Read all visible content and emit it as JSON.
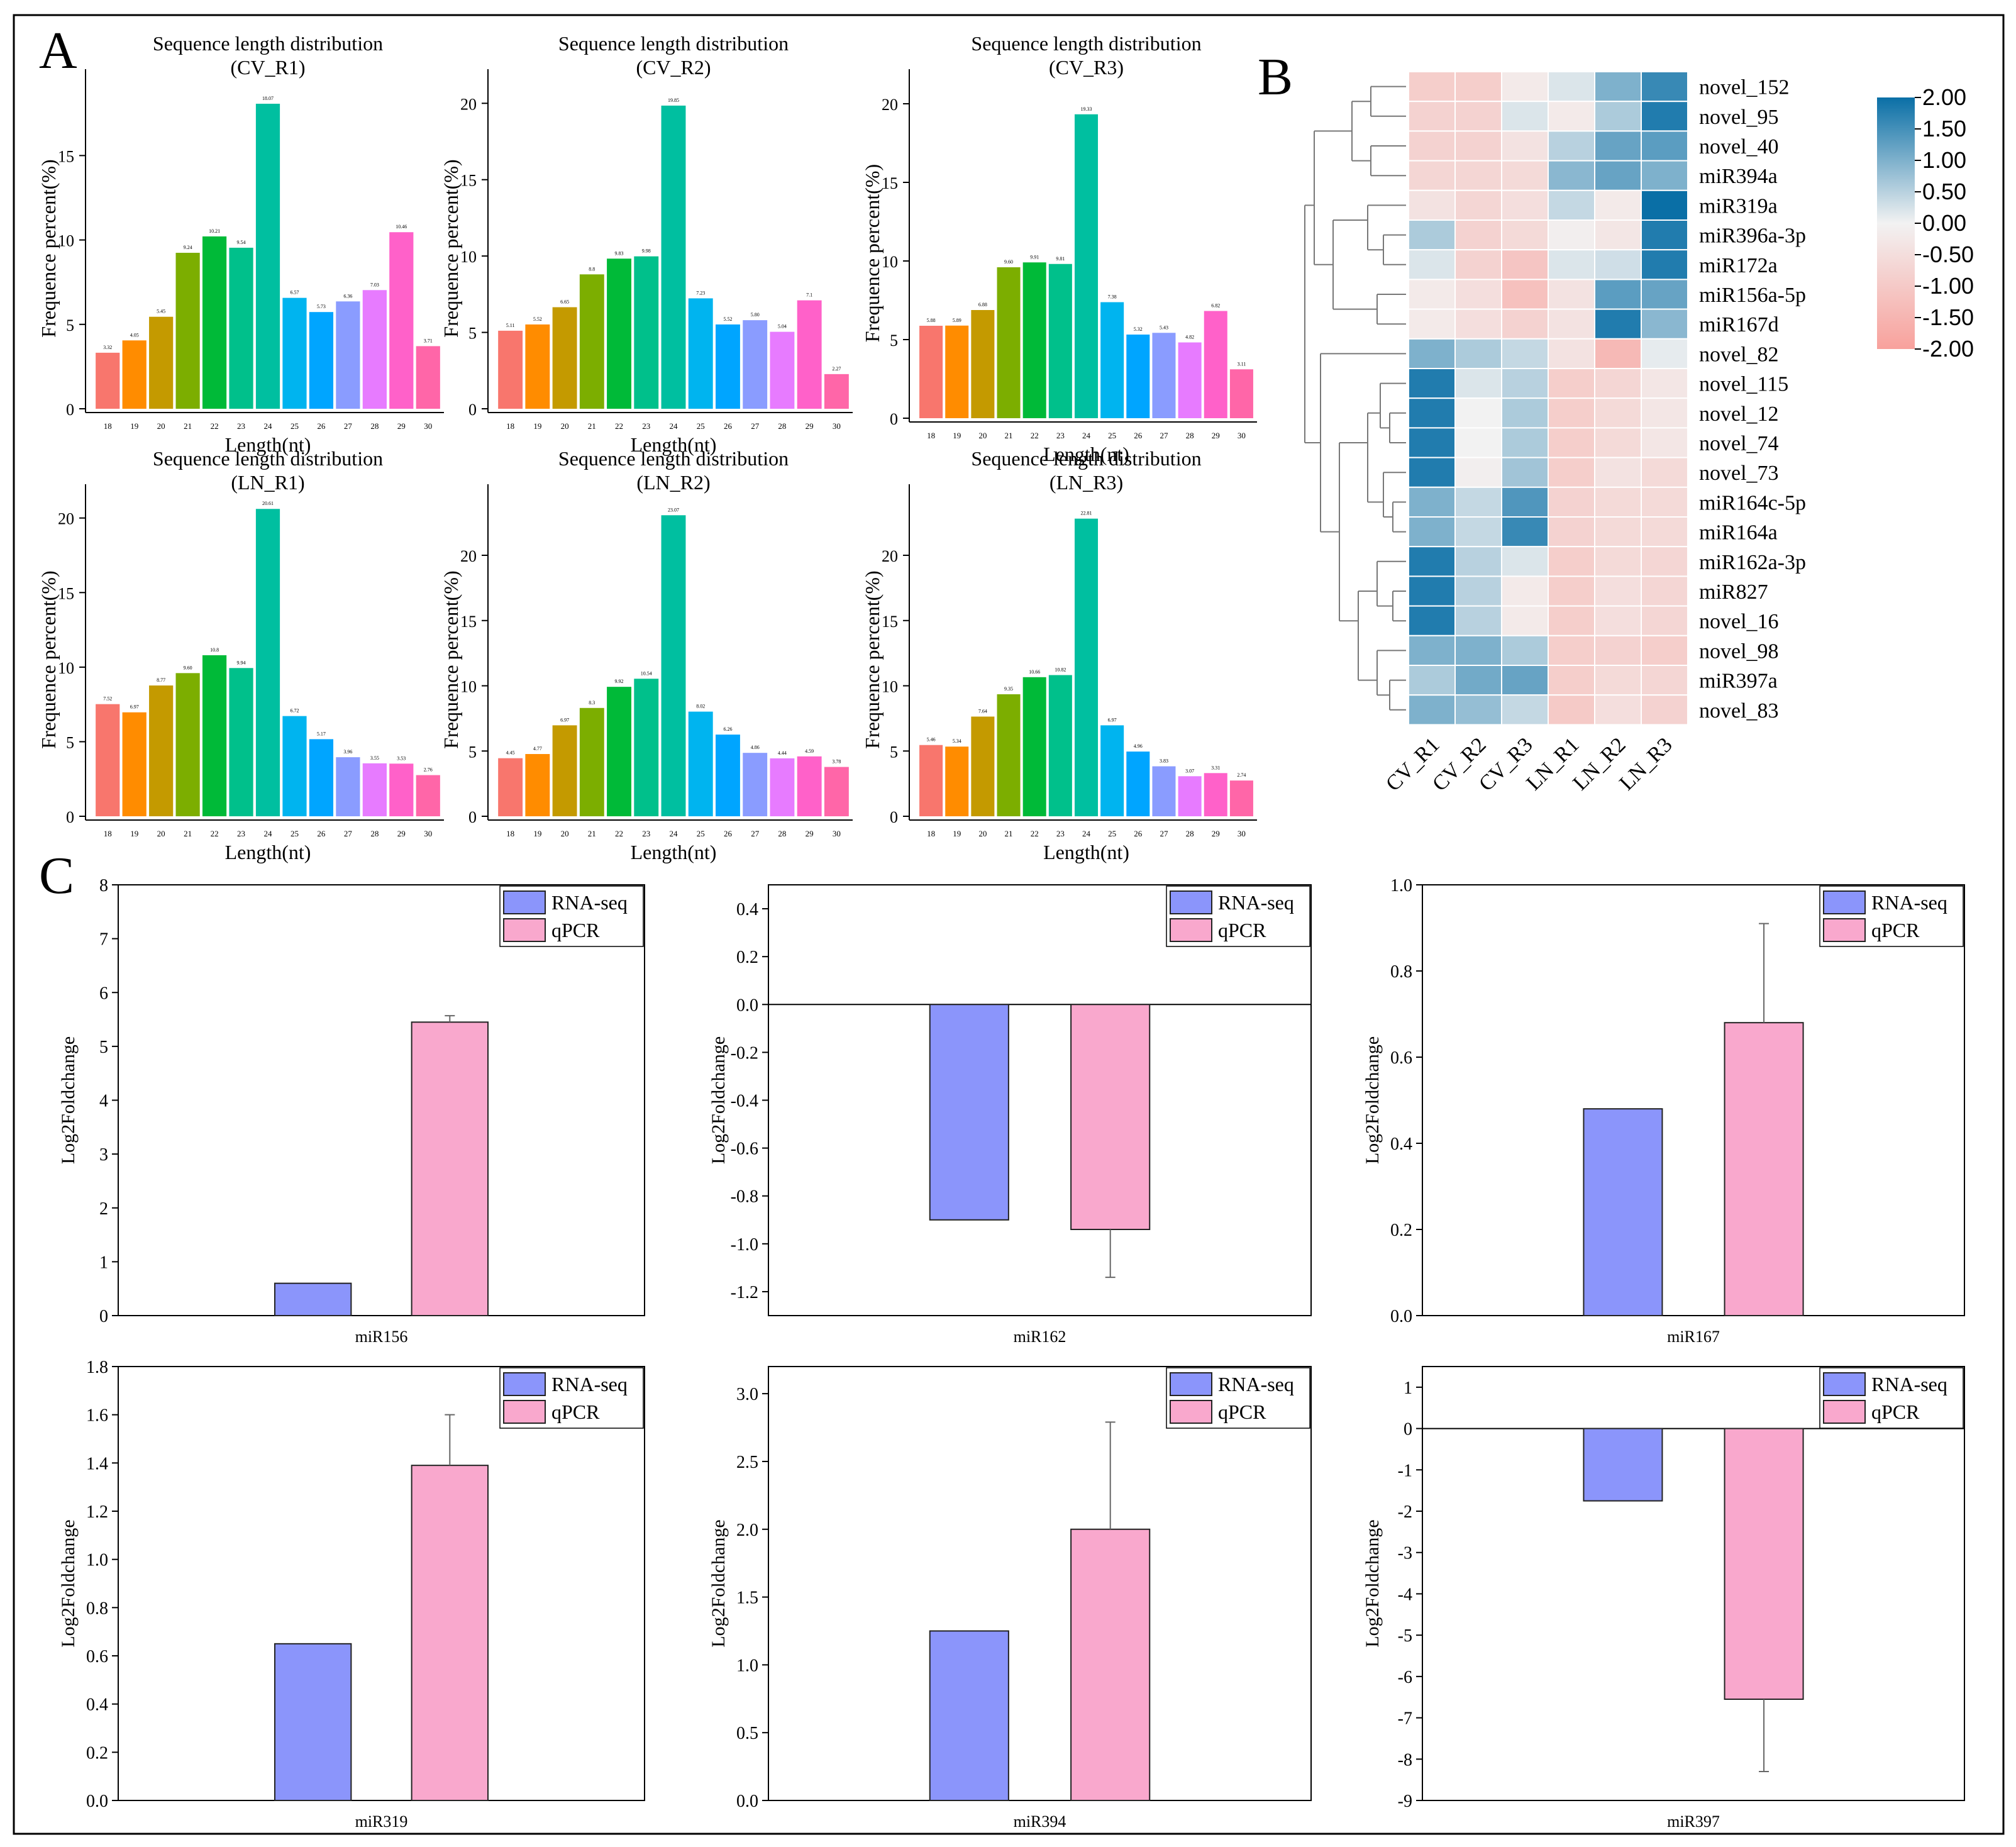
{
  "colors": {
    "bar_palette": [
      "#F8766D",
      "#FF8C00",
      "#C49A00",
      "#7CAE00",
      "#00BA38",
      "#00C08B",
      "#00BFA0",
      "#00B4EF",
      "#00A5FF",
      "#8A9CFF",
      "#E77BFF",
      "#FF61C9",
      "#FF66A8"
    ],
    "rna_seq": "#8B95FB",
    "qpcr": "#F9A8CD",
    "heat_high": "#0A6FA6",
    "heat_mid": "#F2F2F2",
    "heat_low": "#F8A19C"
  },
  "panels": {
    "a": "A",
    "b": "B",
    "c": "C"
  },
  "chart_data": [
    {
      "id": "CV_R1",
      "type": "bar",
      "title": "Sequence length distribution",
      "subtitle": "(CV_R1)",
      "xlabel": "Length(nt)",
      "ylabel": "Frequence percent(%)",
      "categories": [
        "18",
        "19",
        "20",
        "21",
        "22",
        "23",
        "24",
        "25",
        "26",
        "27",
        "28",
        "29",
        "30"
      ],
      "values": [
        3.32,
        4.05,
        5.45,
        9.24,
        10.21,
        9.54,
        18.07,
        6.57,
        5.73,
        6.36,
        7.03,
        10.46,
        3.71
      ],
      "labels": [
        "3.32",
        "4.05",
        "5.45",
        "9.24",
        "10.21",
        "9.54",
        "18.07",
        "6.57",
        "5.73",
        "6.36",
        "7.03",
        "10.46",
        "3.71"
      ],
      "ylim": [
        0,
        19
      ],
      "yticks": [
        0,
        5,
        10,
        15
      ]
    },
    {
      "id": "CV_R2",
      "type": "bar",
      "title": "Sequence length distribution",
      "subtitle": "(CV_R2)",
      "xlabel": "Length(nt)",
      "ylabel": "Frequence percent(%)",
      "categories": [
        "18",
        "19",
        "20",
        "21",
        "22",
        "23",
        "24",
        "25",
        "26",
        "27",
        "28",
        "29",
        "30"
      ],
      "values": [
        5.11,
        5.52,
        6.65,
        8.8,
        9.83,
        9.98,
        19.85,
        7.23,
        5.52,
        5.8,
        5.04,
        7.1,
        2.27
      ],
      "labels": [
        "5.11",
        "5.52",
        "6.65",
        "8.8",
        "9.83",
        "9.98",
        "19.85",
        "7.23",
        "5.52",
        "5.80",
        "5.04",
        "7.1",
        "2.27"
      ],
      "ylim": [
        0,
        21
      ],
      "yticks": [
        0,
        5,
        10,
        15,
        20
      ]
    },
    {
      "id": "CV_R3",
      "type": "bar",
      "title": "Sequence length distribution",
      "subtitle": "(CV_R3)",
      "xlabel": "Length(nt)",
      "ylabel": "Frequence percent(%)",
      "categories": [
        "18",
        "19",
        "20",
        "21",
        "22",
        "23",
        "24",
        "25",
        "26",
        "27",
        "28",
        "29",
        "30"
      ],
      "values": [
        5.88,
        5.89,
        6.88,
        9.6,
        9.91,
        9.81,
        19.33,
        7.38,
        5.32,
        5.43,
        4.82,
        6.82,
        3.11
      ],
      "labels": [
        "5.88",
        "5.89",
        "6.88",
        "9.60",
        "9.91",
        "9.81",
        "19.33",
        "7.38",
        "5.32",
        "5.43",
        "4.82",
        "6.82",
        "3.11"
      ],
      "ylim": [
        0,
        21
      ],
      "yticks": [
        0,
        5,
        10,
        15,
        20
      ]
    },
    {
      "id": "LN_R1",
      "type": "bar",
      "title": "Sequence length distribution",
      "subtitle": "(LN_R1)",
      "xlabel": "Length(nt)",
      "ylabel": "Frequence percent(%)",
      "categories": [
        "18",
        "19",
        "20",
        "21",
        "22",
        "23",
        "24",
        "25",
        "26",
        "27",
        "28",
        "29",
        "30"
      ],
      "values": [
        7.52,
        6.97,
        8.77,
        9.6,
        10.8,
        9.94,
        20.61,
        6.72,
        5.17,
        3.96,
        3.55,
        3.53,
        2.76
      ],
      "labels": [
        "7.52",
        "6.97",
        "8.77",
        "9.60",
        "10.8",
        "9.94",
        "20.61",
        "6.72",
        "5.17",
        "3.96",
        "3.55",
        "3.53",
        "2.76"
      ],
      "ylim": [
        0,
        21
      ],
      "yticks": [
        0,
        5,
        10,
        15,
        20
      ]
    },
    {
      "id": "LN_R2",
      "type": "bar",
      "title": "Sequence length distribution",
      "subtitle": "(LN_R2)",
      "xlabel": "Length(nt)",
      "ylabel": "Frequence percent(%)",
      "categories": [
        "18",
        "19",
        "20",
        "21",
        "22",
        "23",
        "24",
        "25",
        "26",
        "27",
        "28",
        "29",
        "30"
      ],
      "values": [
        4.45,
        4.77,
        6.97,
        8.3,
        9.92,
        10.54,
        23.07,
        8.02,
        6.26,
        4.86,
        4.44,
        4.59,
        3.78
      ],
      "labels": [
        "4.45",
        "4.77",
        "6.97",
        "8.3",
        "9.92",
        "10.54",
        "23.07",
        "8.02",
        "6.26",
        "4.86",
        "4.44",
        "4.59",
        "3.78"
      ],
      "ylim": [
        0,
        24
      ],
      "yticks": [
        0,
        5,
        10,
        15,
        20
      ]
    },
    {
      "id": "LN_R3",
      "type": "bar",
      "title": "Sequence length distribution",
      "subtitle": "(LN_R3)",
      "xlabel": "Length(nt)",
      "ylabel": "Frequence percent(%)",
      "categories": [
        "18",
        "19",
        "20",
        "21",
        "22",
        "23",
        "24",
        "25",
        "26",
        "27",
        "28",
        "29",
        "30"
      ],
      "values": [
        5.46,
        5.34,
        7.64,
        9.35,
        10.66,
        10.82,
        22.81,
        6.97,
        4.96,
        3.83,
        3.07,
        3.31,
        2.74
      ],
      "labels": [
        "5.46",
        "5.34",
        "7.64",
        "9.35",
        "10.66",
        "10.82",
        "22.81",
        "6.97",
        "4.96",
        "3.83",
        "3.07",
        "3.31",
        "2.74"
      ],
      "ylim": [
        0,
        24
      ],
      "yticks": [
        0,
        5,
        10,
        15,
        20
      ]
    },
    {
      "id": "heatmap",
      "type": "heatmap",
      "rows": [
        "novel_152",
        "novel_95",
        "novel_40",
        "miR394a",
        "miR319a",
        "miR396a-3p",
        "miR172a",
        "miR156a-5p",
        "miR167d",
        "novel_82",
        "novel_115",
        "novel_12",
        "novel_74",
        "novel_73",
        "miR164c-5p",
        "miR164a",
        "miR162a-3p",
        "miR827",
        "novel_16",
        "novel_98",
        "miR397a",
        "novel_83"
      ],
      "columns": [
        "CV_R1",
        "CV_R2",
        "CV_R3",
        "LN_R1",
        "LN_R2",
        "LN_R3"
      ],
      "values": [
        [
          -0.9,
          -0.9,
          -0.2,
          0.2,
          1.0,
          1.6
        ],
        [
          -0.8,
          -0.8,
          0.2,
          -0.2,
          0.6,
          1.8
        ],
        [
          -0.8,
          -0.8,
          -0.4,
          0.5,
          1.2,
          1.3
        ],
        [
          -0.7,
          -0.7,
          -0.6,
          0.9,
          1.2,
          1.0
        ],
        [
          -0.4,
          -0.7,
          -0.5,
          0.4,
          -0.2,
          2.0
        ],
        [
          0.6,
          -0.8,
          -0.6,
          -0.1,
          -0.3,
          1.8
        ],
        [
          0.2,
          -0.8,
          -1.1,
          0.2,
          0.3,
          1.8
        ],
        [
          -0.2,
          -0.5,
          -1.2,
          -0.4,
          1.3,
          1.2
        ],
        [
          -0.2,
          -0.5,
          -0.8,
          -0.4,
          1.8,
          0.9
        ],
        [
          1.0,
          0.6,
          0.4,
          -0.4,
          -1.4,
          0.1
        ],
        [
          1.8,
          0.2,
          0.5,
          -0.9,
          -0.7,
          -0.3
        ],
        [
          1.8,
          0.0,
          0.6,
          -0.9,
          -0.6,
          -0.3
        ],
        [
          1.8,
          0.0,
          0.6,
          -0.9,
          -0.6,
          -0.3
        ],
        [
          1.8,
          -0.1,
          0.7,
          -0.9,
          -0.4,
          -0.6
        ],
        [
          1.0,
          0.4,
          1.4,
          -0.8,
          -0.6,
          -0.6
        ],
        [
          1.0,
          0.4,
          1.6,
          -0.8,
          -0.6,
          -0.6
        ],
        [
          1.8,
          0.5,
          0.2,
          -0.9,
          -0.6,
          -0.7
        ],
        [
          1.8,
          0.5,
          -0.2,
          -0.9,
          -0.5,
          -0.7
        ],
        [
          1.8,
          0.5,
          -0.2,
          -0.9,
          -0.5,
          -0.7
        ],
        [
          1.0,
          1.0,
          0.6,
          -0.9,
          -0.8,
          -0.9
        ],
        [
          0.6,
          1.1,
          1.2,
          -0.9,
          -0.6,
          -0.7
        ],
        [
          1.0,
          0.8,
          0.4,
          -1.0,
          -0.5,
          -0.8
        ]
      ],
      "colorbar": {
        "min": -2.0,
        "max": 2.0,
        "ticks": [
          "2.00",
          "1.50",
          "1.00",
          "0.50",
          "0.00",
          "-0.50",
          "-1.00",
          "-1.50",
          "-2.00"
        ]
      }
    },
    {
      "id": "miR156",
      "type": "bar",
      "xlabel": "miR156",
      "ylabel": "Log2Foldchange",
      "series": [
        {
          "name": "RNA-seq",
          "value": 0.6
        },
        {
          "name": "qPCR",
          "value": 5.45,
          "err": 0.12
        }
      ],
      "ylim": [
        0,
        8
      ],
      "yticks": [
        "0",
        "1",
        "2",
        "3",
        "4",
        "5",
        "6",
        "7",
        "8"
      ],
      "legend": "top-right"
    },
    {
      "id": "miR162",
      "type": "bar",
      "xlabel": "miR162",
      "ylabel": "Log2Foldchange",
      "series": [
        {
          "name": "RNA-seq",
          "value": -0.9
        },
        {
          "name": "qPCR",
          "value": -0.94,
          "err": 0.2
        }
      ],
      "ylim": [
        -1.3,
        0.5
      ],
      "yticks": [
        "-1.2",
        "-1.0",
        "-0.8",
        "-0.6",
        "-0.4",
        "-0.2",
        "0.0",
        "0.2",
        "0.4"
      ],
      "legend": "top-right"
    },
    {
      "id": "miR167",
      "type": "bar",
      "xlabel": "miR167",
      "ylabel": "Log2Foldchange",
      "series": [
        {
          "name": "RNA-seq",
          "value": 0.48
        },
        {
          "name": "qPCR",
          "value": 0.68,
          "err": 0.23
        }
      ],
      "ylim": [
        0,
        1.0
      ],
      "yticks": [
        "0.0",
        "0.2",
        "0.4",
        "0.6",
        "0.8",
        "1.0"
      ],
      "legend": "top-right"
    },
    {
      "id": "miR319",
      "type": "bar",
      "xlabel": "miR319",
      "ylabel": "Log2Foldchange",
      "series": [
        {
          "name": "RNA-seq",
          "value": 0.65
        },
        {
          "name": "qPCR",
          "value": 1.39,
          "err": 0.21
        }
      ],
      "ylim": [
        0,
        1.8
      ],
      "yticks": [
        "0.0",
        "0.2",
        "0.4",
        "0.6",
        "0.8",
        "1.0",
        "1.2",
        "1.4",
        "1.6",
        "1.8"
      ],
      "legend": "top-right"
    },
    {
      "id": "miR394",
      "type": "bar",
      "xlabel": "miR394",
      "ylabel": "Log2Foldchange",
      "series": [
        {
          "name": "RNA-seq",
          "value": 1.25
        },
        {
          "name": "qPCR",
          "value": 2.0,
          "err": 0.79
        }
      ],
      "ylim": [
        0,
        3.2
      ],
      "yticks": [
        "0.0",
        "0.5",
        "1.0",
        "1.5",
        "2.0",
        "2.5",
        "3.0"
      ],
      "legend": "top-right"
    },
    {
      "id": "miR397",
      "type": "bar",
      "xlabel": "miR397",
      "ylabel": "Log2Foldchange",
      "series": [
        {
          "name": "RNA-seq",
          "value": -1.75
        },
        {
          "name": "qPCR",
          "value": -6.55,
          "err": 1.75
        }
      ],
      "ylim": [
        -9,
        1.5
      ],
      "yticks": [
        "-9",
        "-8",
        "-7",
        "-6",
        "-5",
        "-4",
        "-3",
        "-2",
        "-1",
        "0",
        "1"
      ],
      "legend": "top-right"
    }
  ]
}
